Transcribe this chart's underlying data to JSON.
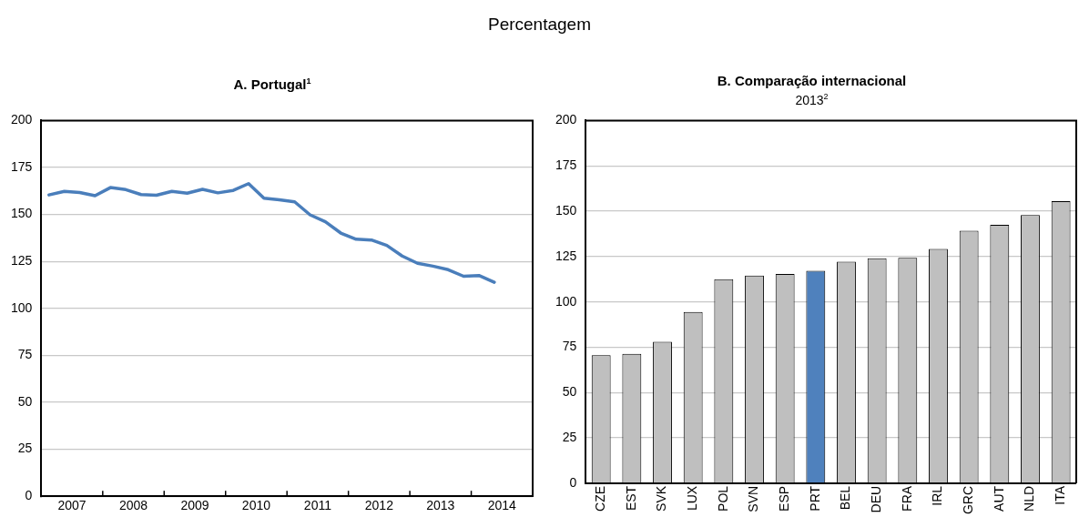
{
  "chart_data": [
    {
      "type": "line",
      "title": "A. Portugal$^{1}$",
      "annotations": [
        "Percentagem"
      ],
      "x": [
        2007.125,
        2007.375,
        2007.625,
        2007.875,
        2008.125,
        2008.375,
        2008.625,
        2008.875,
        2009.125,
        2009.375,
        2009.625,
        2009.875,
        2010.125,
        2010.375,
        2010.625,
        2010.875,
        2011.125,
        2011.375,
        2011.625,
        2011.875,
        2012.125,
        2012.375,
        2012.625,
        2012.875,
        2013.125,
        2013.375,
        2013.625,
        2013.875,
        2014.125,
        2014.375
      ],
      "series": [
        {
          "color": "#4a7ebb",
          "values": [
            160.4,
            162.3,
            161.7,
            160.0,
            164.3,
            163.2,
            160.6,
            160.2,
            162.3,
            161.3,
            163.4,
            161.5,
            162.8,
            166.4,
            158.6,
            157.8,
            156.7,
            149.8,
            146.1,
            140.1,
            136.8,
            136.4,
            133.5,
            127.9,
            124.0,
            122.5,
            120.6,
            117.1,
            117.5,
            113.9
          ]
        }
      ],
      "xlim": [
        2007,
        2015
      ],
      "xticks": [
        {
          "value": 2007.5,
          "label": "2007"
        },
        {
          "value": 2008,
          "label": null
        },
        {
          "value": 2008.5,
          "label": "2008"
        },
        {
          "value": 2009,
          "label": null
        },
        {
          "value": 2009.5,
          "label": "2009"
        },
        {
          "value": 2010,
          "label": null
        },
        {
          "value": 2010.5,
          "label": "2010"
        },
        {
          "value": 2011,
          "label": null
        },
        {
          "value": 2011.5,
          "label": "2011"
        },
        {
          "value": 2012,
          "label": null
        },
        {
          "value": 2012.5,
          "label": "2012"
        },
        {
          "value": 2013,
          "label": null
        },
        {
          "value": 2013.5,
          "label": "2013"
        },
        {
          "value": 2014,
          "label": null
        },
        {
          "value": 2014.5,
          "label": "2014"
        }
      ],
      "ylim": [
        0,
        200
      ],
      "yticks": [
        0,
        25,
        50,
        75,
        100,
        125,
        150,
        175,
        200
      ],
      "grid": "y",
      "legend": false,
      "marker": "none"
    },
    {
      "type": "bar",
      "title": "B. Comparação internacional",
      "subtitle": "2013$^{2}$",
      "categories": [
        "CZE",
        "EST",
        "SVK",
        "LUX",
        "POL",
        "SVN",
        "ESP",
        "PRT",
        "BEL",
        "DEU",
        "FRA",
        "IRL",
        "GRC",
        "AUT",
        "NLD",
        "ITA"
      ],
      "values": [
        70.6,
        71.3,
        78.0,
        94.4,
        112.5,
        114.5,
        115.4,
        117.2,
        122.1,
        124.0,
        124.3,
        129.2,
        139.2,
        142.5,
        147.9,
        155.5
      ],
      "colors": [
        "#bfbfbf",
        "#bfbfbf",
        "#bfbfbf",
        "#bfbfbf",
        "#bfbfbf",
        "#bfbfbf",
        "#bfbfbf",
        "#4f81bd",
        "#bfbfbf",
        "#bfbfbf",
        "#bfbfbf",
        "#bfbfbf",
        "#bfbfbf",
        "#bfbfbf",
        "#bfbfbf",
        "#bfbfbf"
      ],
      "ylim": [
        0,
        200
      ],
      "yticks": [
        0,
        25,
        50,
        75,
        100,
        125,
        150,
        175,
        200
      ],
      "grid": "y",
      "legend": false
    }
  ]
}
